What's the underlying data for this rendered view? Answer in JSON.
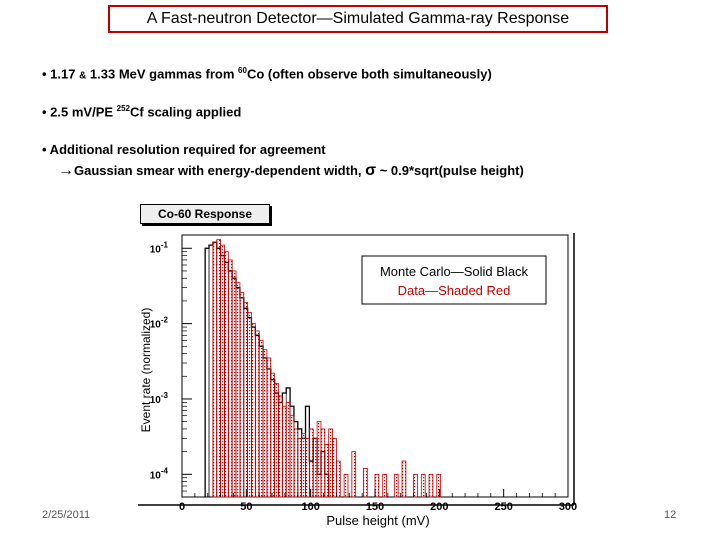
{
  "slide": {
    "title": "A Fast-neutron Detector—Simulated Gamma-ray Response",
    "bullet1_pre": "•  1.17 ",
    "bullet1_amp": "&",
    "bullet1_mid": " 1.33 MeV gammas from ",
    "bullet1_sup": "60",
    "bullet1_post": "Co (often observe both simultaneously)",
    "bullet2_pre": "•  2.5 mV/PE ",
    "bullet2_sup": "252",
    "bullet2_post": "Cf scaling applied",
    "bullet3": "• Additional resolution required for agreement",
    "bullet3_sub_arrow": "→",
    "bullet3_sub": "Gaussian smear with energy-dependent width, ",
    "bullet3_sigma": "σ",
    "bullet3_sub_end": " ~ 0.9*sqrt(pulse height)",
    "date": "2/25/2011",
    "page": "12"
  },
  "chart_data": {
    "type": "histogram",
    "title": "Co-60 Response",
    "xlabel": "Pulse height (mV)",
    "ylabel": "Event rate (normalized)",
    "xlim": [
      0,
      300
    ],
    "ylim": [
      5e-05,
      0.15
    ],
    "log_y": true,
    "x_ticks": [
      "0",
      "50",
      "100",
      "150",
      "200",
      "250",
      "300"
    ],
    "y_ticks": [
      {
        "base": "10",
        "exp": "-1",
        "value": 0.1
      },
      {
        "base": "10",
        "exp": "-2",
        "value": 0.01
      },
      {
        "base": "10",
        "exp": "-3",
        "value": 0.001
      },
      {
        "base": "10",
        "exp": "-4",
        "value": 0.0001
      }
    ],
    "legend_lines": [
      "Monte Carlo—Solid Black",
      "Data—Shaded Red"
    ],
    "legend_colors": [
      "#000000",
      "#c00000"
    ],
    "bin_width": 3,
    "series": [
      {
        "name": "Monte Carlo",
        "color": "#000000",
        "style": "solid",
        "x": [
          18,
          21,
          24,
          27,
          30,
          33,
          36,
          39,
          42,
          45,
          48,
          51,
          54,
          57,
          60,
          63,
          66,
          69,
          72,
          75,
          78,
          81,
          84,
          87,
          90,
          93,
          96,
          99,
          102,
          105,
          108,
          111
        ],
        "values": [
          0.1,
          0.11,
          0.12,
          0.1,
          0.08,
          0.065,
          0.05,
          0.04,
          0.03,
          0.022,
          0.016,
          0.012,
          0.009,
          0.007,
          0.005,
          0.0035,
          0.0025,
          0.0018,
          0.0012,
          0.0009,
          0.0012,
          0.0014,
          0.0008,
          0.0005,
          0.0004,
          0.0003,
          0.0008,
          0.00015,
          0.0003,
          0.0001,
          0.0002,
          0.0001
        ]
      },
      {
        "name": "Data",
        "color": "#c00000",
        "style": "shaded",
        "x": [
          24,
          27,
          30,
          33,
          36,
          39,
          42,
          45,
          48,
          51,
          54,
          57,
          60,
          63,
          66,
          69,
          72,
          75,
          78,
          81,
          84,
          87,
          90,
          93,
          96,
          99,
          102,
          105,
          108,
          111,
          114,
          117,
          120,
          126,
          132,
          141,
          150,
          156,
          165,
          171,
          180,
          186,
          192,
          198
        ],
        "values": [
          0.12,
          0.13,
          0.11,
          0.09,
          0.07,
          0.05,
          0.035,
          0.026,
          0.019,
          0.014,
          0.01,
          0.008,
          0.006,
          0.0045,
          0.0035,
          0.0022,
          0.0016,
          0.0011,
          0.0008,
          0.0009,
          0.0006,
          0.0004,
          0.0003,
          0.00035,
          0.0003,
          0.0004,
          0.0003,
          0.0005,
          0.0004,
          0.00025,
          0.0004,
          0.0003,
          0.00015,
          0.0001,
          0.0002,
          0.00012,
          0.0001,
          0.0001,
          0.0001,
          0.00015,
          0.0001,
          0.0001,
          0.0001,
          0.0001
        ]
      }
    ]
  }
}
